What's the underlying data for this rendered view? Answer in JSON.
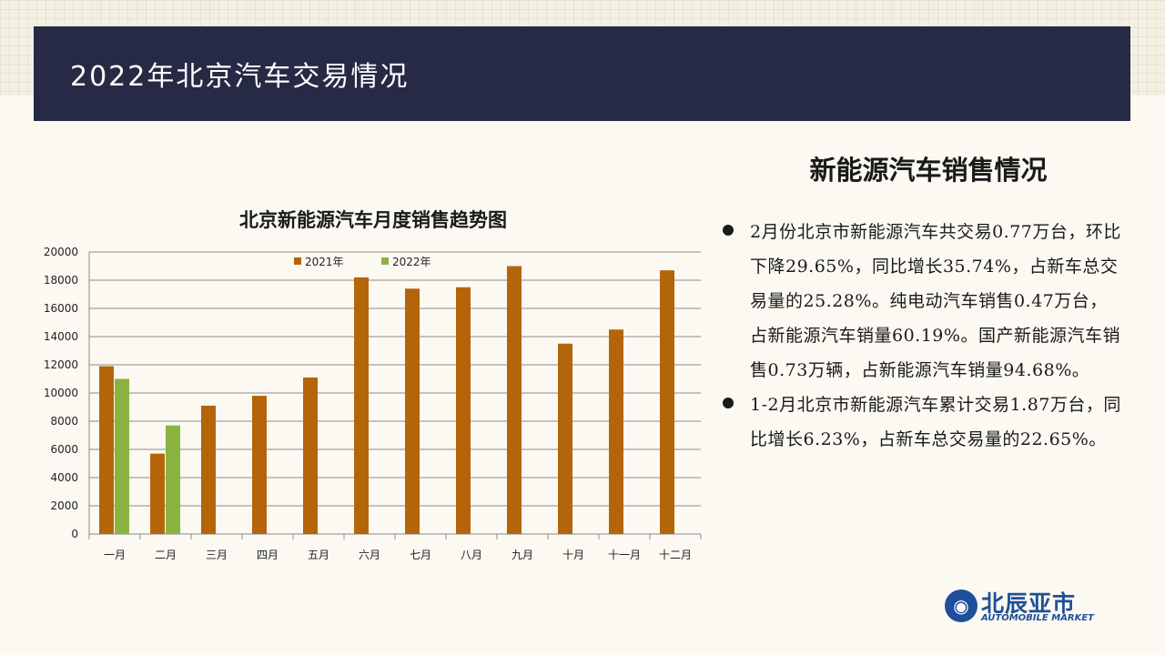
{
  "header": {
    "title": "2022年北京汽车交易情况"
  },
  "section": {
    "title": "新能源汽车销售情况",
    "bullets": [
      "2月份北京市新能源汽车共交易0.77万台，环比下降29.65%，同比增长35.74%，占新车总交易量的25.28%。纯电动汽车销售0.47万台，占新能源汽车销量60.19%。国产新能源汽车销售0.73万辆，占新能源汽车销量94.68%。",
      "1-2月北京市新能源汽车累计交易1.87万台，同比增长6.23%，占新车总交易量的22.65%。"
    ]
  },
  "logo": {
    "cn": "北辰亚市",
    "en": "AUTOMOBILE MARKET",
    "icon": "globe-car-icon"
  },
  "chart_data": {
    "type": "bar",
    "title": "北京新能源汽车月度销售趋势图",
    "categories": [
      "一月",
      "二月",
      "三月",
      "四月",
      "五月",
      "六月",
      "七月",
      "八月",
      "九月",
      "十月",
      "十一月",
      "十二月"
    ],
    "series": [
      {
        "name": "2021年",
        "color": "#b4650a",
        "values": [
          11900,
          5700,
          9100,
          9800,
          11100,
          18200,
          17400,
          17500,
          19000,
          13500,
          14500,
          18700
        ]
      },
      {
        "name": "2022年",
        "color": "#8bb33f",
        "values": [
          11000,
          7700,
          null,
          null,
          null,
          null,
          null,
          null,
          null,
          null,
          null,
          null
        ]
      }
    ],
    "ylim": [
      0,
      20000
    ],
    "yticks": [
      0,
      2000,
      4000,
      6000,
      8000,
      10000,
      12000,
      14000,
      16000,
      18000,
      20000
    ],
    "grid": true,
    "legend_position": "top"
  }
}
